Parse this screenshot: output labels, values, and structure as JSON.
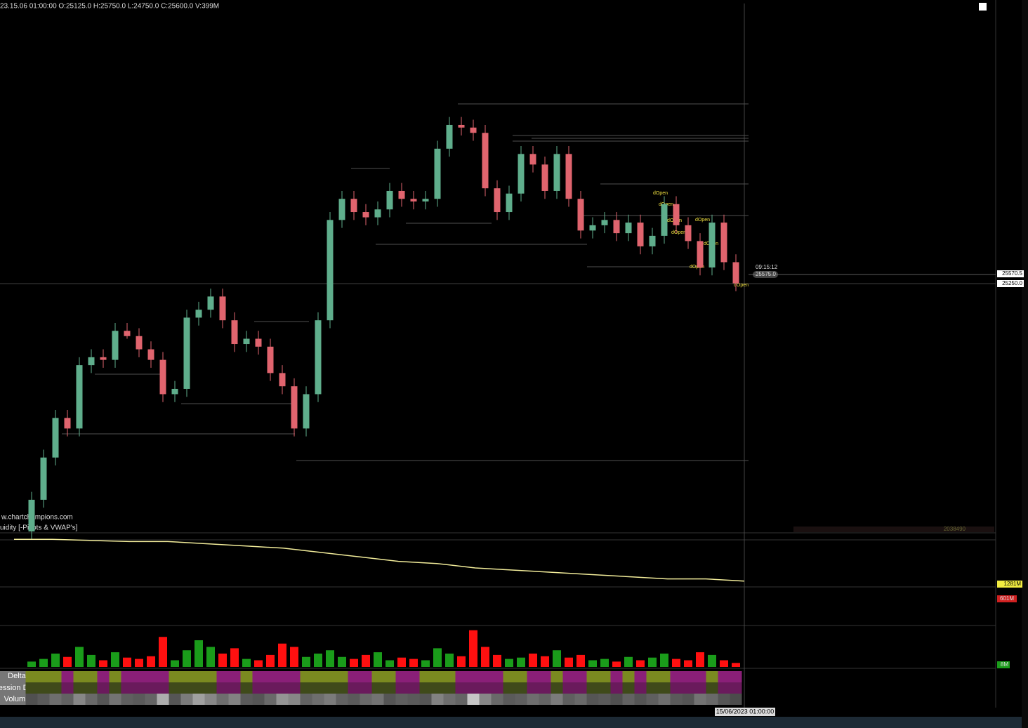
{
  "chart_data": {
    "type": "candlestick",
    "header": "23.15.06 01:00:00 O:25125.0 H:25750.0 L:24750.0 C:25600.0 V:399M",
    "watermark": "w.chartchampions.com",
    "study_label": "uidity [-Pivots & VWAP's]",
    "time_label": "09:15:12",
    "last_price_label": "25575.0",
    "price_markers": [
      "25570.5",
      "25250.0"
    ],
    "annotations": [
      "dOpen",
      "dOpen",
      "dOpen",
      "dOpen",
      "dOpen",
      "dOpen",
      "dOpen",
      "dOpen"
    ],
    "ylim": [
      24600,
      26600
    ],
    "up_color": "#5fae8c",
    "down_color": "#e0646e",
    "open": [
      24600,
      24720,
      24880,
      25030,
      24990,
      25230,
      25260,
      25250,
      25360,
      25340,
      25290,
      25250,
      25120,
      25140,
      25410,
      25440,
      25490,
      25400,
      25310,
      25330,
      25300,
      25200,
      25150,
      24990,
      25120,
      25400,
      25780,
      25860,
      25810,
      25790,
      25820,
      25890,
      25860,
      25850,
      25860,
      26050,
      26140,
      26130,
      26110,
      25900,
      25810,
      25880,
      26030,
      25990,
      25890,
      26030,
      25860,
      25740,
      25760,
      25780,
      25730,
      25770,
      25680,
      25720,
      25840,
      25760,
      25700,
      25600,
      25770,
      25620
    ],
    "high": [
      24750,
      24910,
      25060,
      25060,
      25260,
      25290,
      25290,
      25390,
      25390,
      25370,
      25320,
      25280,
      25170,
      25440,
      25470,
      25520,
      25520,
      25430,
      25360,
      25360,
      25330,
      25230,
      25180,
      25150,
      25430,
      25810,
      25890,
      25890,
      25840,
      25850,
      25920,
      25920,
      25890,
      25890,
      26080,
      26170,
      26170,
      26160,
      26140,
      25930,
      25910,
      26060,
      26060,
      26020,
      26060,
      26060,
      25890,
      25790,
      25810,
      25810,
      25800,
      25800,
      25750,
      25870,
      25870,
      25790,
      25730,
      25800,
      25800,
      25650
    ],
    "low": [
      24570,
      24690,
      24850,
      24960,
      24960,
      25200,
      25220,
      25220,
      25330,
      25260,
      25220,
      25090,
      25090,
      25110,
      25380,
      25410,
      25370,
      25280,
      25280,
      25270,
      25170,
      25120,
      24960,
      24960,
      25090,
      25370,
      25750,
      25780,
      25760,
      25760,
      25790,
      25830,
      25820,
      25820,
      25830,
      26020,
      26100,
      26080,
      25870,
      25780,
      25780,
      25850,
      25960,
      25860,
      25860,
      25830,
      25710,
      25710,
      25730,
      25700,
      25700,
      25650,
      25650,
      25690,
      25730,
      25670,
      25570,
      25570,
      25590,
      25510
    ],
    "close": [
      24720,
      24880,
      25030,
      24990,
      25230,
      25260,
      25250,
      25360,
      25340,
      25290,
      25250,
      25120,
      25140,
      25410,
      25440,
      25490,
      25400,
      25310,
      25330,
      25300,
      25200,
      25150,
      24990,
      25120,
      25400,
      25780,
      25860,
      25810,
      25790,
      25820,
      25890,
      25860,
      25850,
      25860,
      26050,
      26140,
      26130,
      26110,
      25900,
      25810,
      25880,
      26030,
      25990,
      25890,
      26030,
      25860,
      25740,
      25760,
      25780,
      25730,
      25770,
      25680,
      25720,
      25840,
      25760,
      25700,
      25600,
      25770,
      25620,
      25540
    ],
    "cum_line": {
      "color": "#f2ec9a",
      "ylim": [
        1279,
        1302
      ],
      "marker_label": "1281M",
      "values": [
        1300,
        1300,
        1299.5,
        1299,
        1299,
        1298,
        1297,
        1296,
        1294,
        1292,
        1290,
        1289,
        1287,
        1286,
        1285,
        1284,
        1283,
        1282,
        1282,
        1281
      ]
    },
    "delta_marker_label": "601M",
    "volume": {
      "ylim": [
        0,
        60
      ],
      "marker_label": "8M",
      "up_color": "#1a9c1a",
      "down_color": "#ff1010",
      "values": [
        8,
        12,
        20,
        15,
        30,
        18,
        10,
        22,
        14,
        12,
        16,
        45,
        10,
        25,
        40,
        30,
        20,
        28,
        12,
        10,
        18,
        35,
        30,
        15,
        20,
        25,
        15,
        12,
        18,
        22,
        10,
        14,
        12,
        10,
        28,
        20,
        16,
        55,
        30,
        18,
        12,
        14,
        20,
        16,
        25,
        14,
        18,
        10,
        12,
        8,
        15,
        10,
        14,
        20,
        12,
        10,
        22,
        18,
        10,
        6
      ]
    },
    "bar_counter_label": "2038490",
    "row_labels": [
      "Delta",
      "ession Delta",
      "Volume"
    ],
    "x_label": "15/06/2023 01:00:00"
  }
}
